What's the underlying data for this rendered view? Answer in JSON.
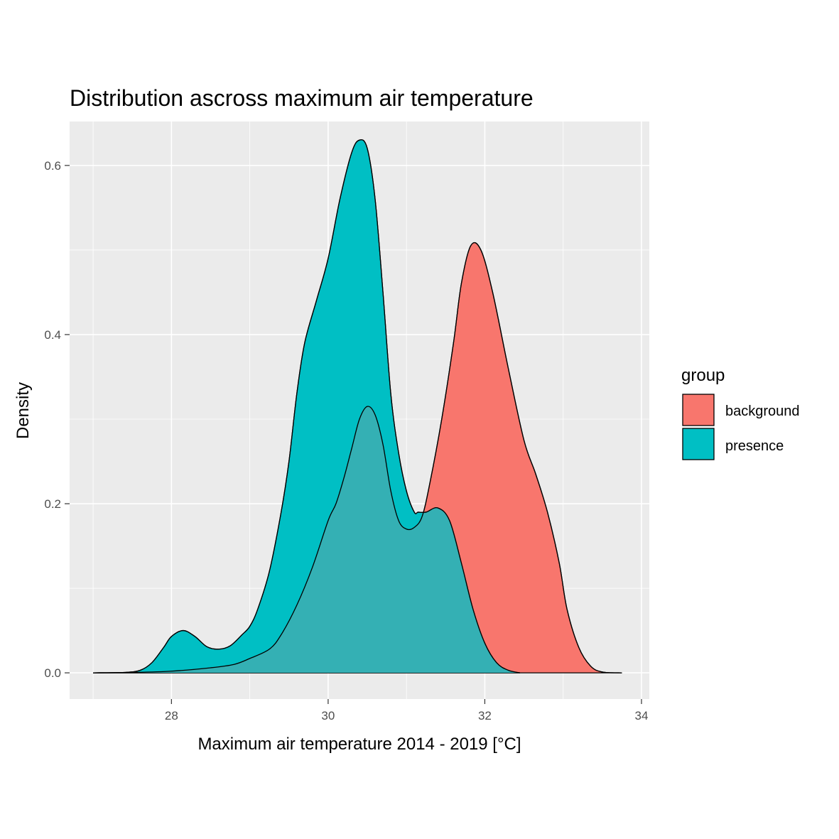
{
  "chart_data": {
    "type": "area",
    "title": "Distribution ascross maximum air temperature",
    "xlabel": "Maximum air temperature 2014 - 2019 [°C]",
    "ylabel": "Density",
    "xlim": [
      26.7,
      34.1
    ],
    "ylim": [
      -0.031,
      0.652
    ],
    "x_ticks": [
      28,
      30,
      32,
      34
    ],
    "y_ticks": [
      0.0,
      0.2,
      0.4,
      0.6
    ],
    "x_tick_labels": [
      "28",
      "30",
      "32",
      "34"
    ],
    "y_tick_labels": [
      "0.0",
      "0.2",
      "0.4",
      "0.6"
    ],
    "grid": true,
    "legend": {
      "title": "group",
      "position": "right"
    },
    "series": [
      {
        "name": "background",
        "color": "#F8766D",
        "opacity": 1.0,
        "points": [
          [
            27.0,
            0.0
          ],
          [
            27.5,
            0.0005
          ],
          [
            28.0,
            0.002
          ],
          [
            28.5,
            0.006
          ],
          [
            28.8,
            0.01
          ],
          [
            29.0,
            0.017
          ],
          [
            29.25,
            0.028
          ],
          [
            29.4,
            0.045
          ],
          [
            29.6,
            0.08
          ],
          [
            29.8,
            0.125
          ],
          [
            30.0,
            0.18
          ],
          [
            30.1,
            0.2
          ],
          [
            30.2,
            0.23
          ],
          [
            30.3,
            0.265
          ],
          [
            30.4,
            0.3
          ],
          [
            30.5,
            0.315
          ],
          [
            30.6,
            0.305
          ],
          [
            30.7,
            0.27
          ],
          [
            30.8,
            0.215
          ],
          [
            30.9,
            0.18
          ],
          [
            31.0,
            0.17
          ],
          [
            31.1,
            0.172
          ],
          [
            31.2,
            0.185
          ],
          [
            31.3,
            0.225
          ],
          [
            31.45,
            0.3
          ],
          [
            31.6,
            0.39
          ],
          [
            31.7,
            0.46
          ],
          [
            31.82,
            0.505
          ],
          [
            31.95,
            0.5
          ],
          [
            32.1,
            0.45
          ],
          [
            32.3,
            0.36
          ],
          [
            32.5,
            0.275
          ],
          [
            32.65,
            0.235
          ],
          [
            32.8,
            0.19
          ],
          [
            32.95,
            0.13
          ],
          [
            33.05,
            0.075
          ],
          [
            33.2,
            0.03
          ],
          [
            33.35,
            0.008
          ],
          [
            33.5,
            0.001
          ],
          [
            33.75,
            0.0
          ]
        ]
      },
      {
        "name": "presence",
        "color": "#00BFC4",
        "opacity": 1.0,
        "points": [
          [
            27.0,
            0.0
          ],
          [
            27.4,
            0.0005
          ],
          [
            27.6,
            0.003
          ],
          [
            27.75,
            0.012
          ],
          [
            27.9,
            0.03
          ],
          [
            28.0,
            0.043
          ],
          [
            28.15,
            0.05
          ],
          [
            28.3,
            0.043
          ],
          [
            28.45,
            0.031
          ],
          [
            28.6,
            0.028
          ],
          [
            28.75,
            0.032
          ],
          [
            28.9,
            0.045
          ],
          [
            29.0,
            0.055
          ],
          [
            29.1,
            0.075
          ],
          [
            29.25,
            0.12
          ],
          [
            29.4,
            0.19
          ],
          [
            29.5,
            0.25
          ],
          [
            29.6,
            0.33
          ],
          [
            29.7,
            0.39
          ],
          [
            29.85,
            0.44
          ],
          [
            30.0,
            0.49
          ],
          [
            30.15,
            0.56
          ],
          [
            30.3,
            0.615
          ],
          [
            30.4,
            0.63
          ],
          [
            30.5,
            0.62
          ],
          [
            30.6,
            0.56
          ],
          [
            30.7,
            0.45
          ],
          [
            30.8,
            0.33
          ],
          [
            30.9,
            0.26
          ],
          [
            31.0,
            0.215
          ],
          [
            31.1,
            0.19
          ],
          [
            31.15,
            0.19
          ],
          [
            31.25,
            0.19
          ],
          [
            31.4,
            0.195
          ],
          [
            31.55,
            0.18
          ],
          [
            31.7,
            0.13
          ],
          [
            31.85,
            0.075
          ],
          [
            32.0,
            0.035
          ],
          [
            32.15,
            0.012
          ],
          [
            32.3,
            0.003
          ],
          [
            32.45,
            0.0
          ]
        ]
      }
    ],
    "overlap_color": "#34B0B4"
  }
}
